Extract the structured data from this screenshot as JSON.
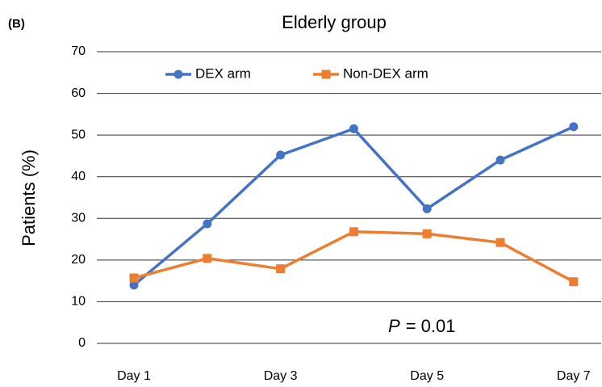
{
  "chart_data": {
    "type": "line",
    "panel_label": "(B)",
    "title": "Elderly group",
    "y_label": "Patients (%)",
    "categories": [
      "Day 1",
      null,
      "Day 3",
      null,
      "Day 5",
      null,
      "Day 7"
    ],
    "series": [
      {
        "name": "DEX arm",
        "color": "#4472c4",
        "marker": "circle",
        "values": [
          14,
          28.7,
          45.2,
          51.5,
          32.3,
          44,
          52
        ]
      },
      {
        "name": "Non-DEX arm",
        "color": "#ed7d31",
        "marker": "square",
        "values": [
          15.7,
          20.4,
          17.9,
          26.8,
          26.3,
          24.2,
          14.8
        ]
      }
    ],
    "ylim": [
      0,
      70
    ],
    "yticks": [
      0,
      10,
      20,
      30,
      40,
      50,
      60,
      70
    ],
    "grid": true,
    "legend": "top",
    "annotation": [
      "P",
      "= 0.01"
    ]
  }
}
